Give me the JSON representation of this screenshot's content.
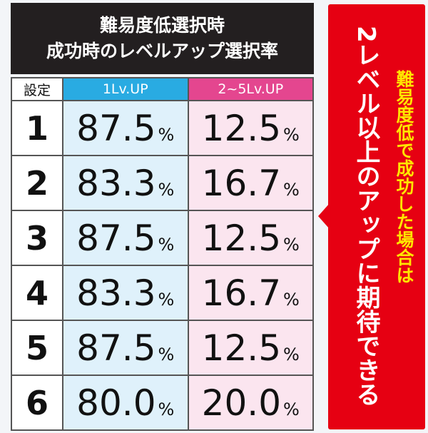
{
  "header": {
    "title_lines": [
      "難易度低選択時",
      "成功時のレベルアップ選択率"
    ]
  },
  "table": {
    "columns": [
      "設定",
      "1Lv.UP",
      "2~5Lv.UP"
    ],
    "unit": "%",
    "rows": [
      [
        "1",
        "87.5",
        "12.5"
      ],
      [
        "2",
        "83.3",
        "16.7"
      ],
      [
        "3",
        "87.5",
        "12.5"
      ],
      [
        "4",
        "83.3",
        "16.7"
      ],
      [
        "5",
        "87.5",
        "12.5"
      ],
      [
        "6",
        "80.0",
        "20.0"
      ]
    ]
  },
  "callout": {
    "lines": [
      "難易度低で成功した場合は",
      "2レベル以上のアップに期待できる"
    ]
  }
}
